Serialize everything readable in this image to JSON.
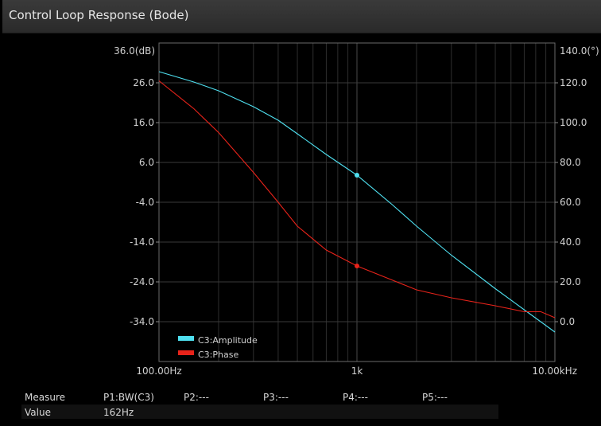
{
  "window": {
    "title": "Control Loop Response (Bode)"
  },
  "chart_data": {
    "type": "line",
    "xscale": "log",
    "xlim": [
      100,
      10000
    ],
    "x_ticks": [
      {
        "value": 100,
        "label": "100.00Hz"
      },
      {
        "value": 1000,
        "label": "1k"
      },
      {
        "value": 10000,
        "label": "10.00kHz"
      }
    ],
    "y_left": {
      "unit_label": "36.0(dB)",
      "lim": [
        -44,
        36
      ],
      "ticks": [
        26,
        16,
        6,
        -4,
        -14,
        -24,
        -34
      ],
      "tick_labels": [
        "26.0",
        "16.0",
        "6.0",
        "-4.0",
        "-14.0",
        "-24.0",
        "-34.0"
      ]
    },
    "y_right": {
      "unit_label": "140.0(°)",
      "lim": [
        -20,
        140
      ],
      "ticks": [
        120,
        100,
        80,
        60,
        40,
        20,
        0
      ],
      "tick_labels": [
        "120.0",
        "100.0",
        "80.0",
        "60.0",
        "40.0",
        "20.0",
        "0.0"
      ]
    },
    "grid": true,
    "legend_position": "bottom-left",
    "series": [
      {
        "name": "C3:Amplitude",
        "color": "#4fe0f0",
        "axis": "left",
        "x": [
          100,
          150,
          200,
          300,
          400,
          500,
          700,
          1000,
          1500,
          2000,
          3000,
          5000,
          7000,
          10000
        ],
        "y": [
          28.8,
          26.2,
          24.0,
          20.0,
          16.6,
          13.2,
          8.0,
          2.8,
          -4.5,
          -10.0,
          -17.3,
          -25.7,
          -31.0,
          -36.6
        ]
      },
      {
        "name": "C3:Phase",
        "color": "#e8231a",
        "axis": "right",
        "x": [
          100,
          150,
          200,
          300,
          400,
          500,
          700,
          1000,
          1500,
          2000,
          3000,
          5000,
          7000,
          8500,
          10000
        ],
        "y": [
          121,
          107,
          95,
          75,
          60,
          48,
          36,
          28,
          21,
          16,
          12,
          8,
          5,
          5,
          2
        ]
      }
    ],
    "markers": [
      {
        "series": "C3:Amplitude",
        "x": 1000,
        "y": 2.8
      },
      {
        "series": "C3:Phase",
        "x": 1000,
        "y": 28
      }
    ]
  },
  "measure": {
    "header_label": "Measure",
    "value_label": "Value",
    "columns": [
      {
        "label": "P1:BW(C3)",
        "value": "162Hz"
      },
      {
        "label": "P2:---",
        "value": ""
      },
      {
        "label": "P3:---",
        "value": ""
      },
      {
        "label": "P4:---",
        "value": ""
      },
      {
        "label": "P5:---",
        "value": ""
      }
    ]
  }
}
